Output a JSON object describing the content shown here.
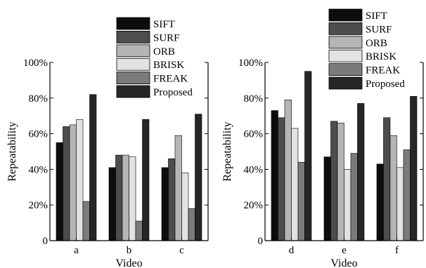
{
  "chart_data": [
    {
      "type": "bar",
      "categories": [
        "a",
        "b",
        "c"
      ],
      "xlabel": "Video",
      "ylabel": "Repeatability",
      "ylim": [
        0,
        100
      ],
      "yticks": [
        "0",
        "20%",
        "40%",
        "60%",
        "80%",
        "100%"
      ],
      "grid": false,
      "legend_position": "top-right",
      "series": [
        {
          "name": "SIFT",
          "color": "#0d0d0d",
          "values": [
            55,
            41,
            41
          ]
        },
        {
          "name": "SURF",
          "color": "#4d4d4d",
          "values": [
            64,
            48,
            46
          ]
        },
        {
          "name": "ORB",
          "color": "#b5b5b5",
          "values": [
            65,
            48,
            59
          ]
        },
        {
          "name": "BRISK",
          "color": "#e2e2e2",
          "values": [
            68,
            47,
            38
          ]
        },
        {
          "name": "FREAK",
          "color": "#7b7b7b",
          "values": [
            22,
            11,
            18
          ]
        },
        {
          "name": "Proposed",
          "color": "#262626",
          "values": [
            82,
            68,
            71
          ]
        }
      ]
    },
    {
      "type": "bar",
      "categories": [
        "d",
        "e",
        "f"
      ],
      "xlabel": "Video",
      "ylabel": "Repeatability",
      "ylim": [
        0,
        100
      ],
      "yticks": [
        "0",
        "20%",
        "40%",
        "60%",
        "80%",
        "100%"
      ],
      "grid": false,
      "legend_position": "top-right",
      "series": [
        {
          "name": "SIFT",
          "color": "#0d0d0d",
          "values": [
            73,
            47,
            43
          ]
        },
        {
          "name": "SURF",
          "color": "#4d4d4d",
          "values": [
            69,
            67,
            69
          ]
        },
        {
          "name": "ORB",
          "color": "#b5b5b5",
          "values": [
            79,
            66,
            59
          ]
        },
        {
          "name": "BRISK",
          "color": "#e2e2e2",
          "values": [
            63,
            40,
            41
          ]
        },
        {
          "name": "FREAK",
          "color": "#7b7b7b",
          "values": [
            44,
            49,
            51
          ]
        },
        {
          "name": "Proposed",
          "color": "#262626",
          "values": [
            95,
            77,
            81
          ]
        }
      ]
    }
  ]
}
